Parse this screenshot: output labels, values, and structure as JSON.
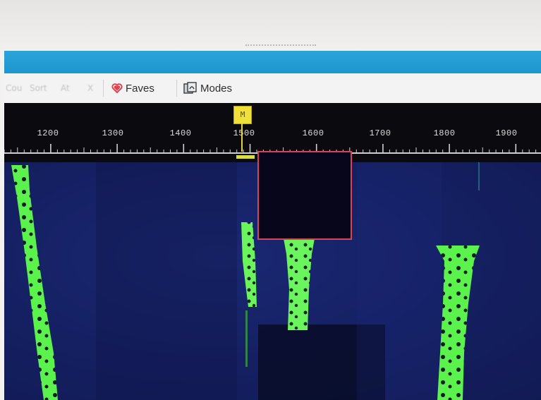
{
  "toolbar": {
    "ghost_items": [
      "Cou",
      "Sort",
      "At",
      "X"
    ],
    "faves_label": "Faves",
    "modes_label": "Modes"
  },
  "ruler": {
    "ticks": [
      "1200",
      "1300",
      "1400",
      "1500",
      "1600",
      "1700",
      "1800",
      "1900"
    ]
  },
  "marker": {
    "label": "M"
  },
  "colors": {
    "toolbar_accent_blue": "#1d95ce",
    "waterfall_background": "#141f5e",
    "signal_green": "#5bf24d",
    "selection_border": "#d8435c",
    "marker_yellow": "#efe13a"
  },
  "icons": {
    "faves": "heart-icon",
    "modes": "modes-icon"
  }
}
